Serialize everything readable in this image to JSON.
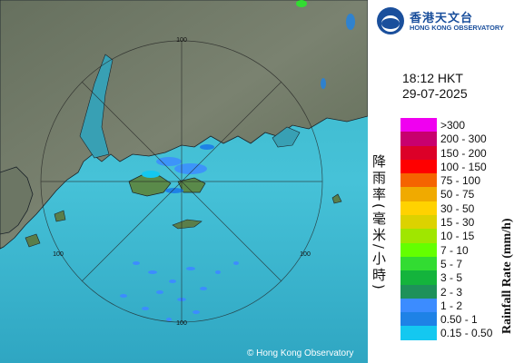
{
  "organization": {
    "name_zh": "香港天文台",
    "name_en": "HONG KONG OBSERVATORY"
  },
  "radar": {
    "time": "18:12 HKT",
    "date": "29-07-2025",
    "range_labels": [
      "100",
      "100",
      "100",
      "100"
    ],
    "copyright": "© Hong Kong Observatory"
  },
  "legend": {
    "title_zh": "降雨率(毫米/小時)",
    "title_en": "Rainfall Rate (mm/h)",
    "items": [
      {
        "label": ">300",
        "color": "#f000f0"
      },
      {
        "label": "200 - 300",
        "color": "#c8006e"
      },
      {
        "label": "150 - 200",
        "color": "#dc0028"
      },
      {
        "label": "100 - 150",
        "color": "#ff0000"
      },
      {
        "label": "75 - 100",
        "color": "#f56400"
      },
      {
        "label": "50 - 75",
        "color": "#f0aa00"
      },
      {
        "label": "30 - 50",
        "color": "#ffd200"
      },
      {
        "label": "15 - 30",
        "color": "#dcd200"
      },
      {
        "label": "10 - 15",
        "color": "#a0e600"
      },
      {
        "label": "7 - 10",
        "color": "#64ff00"
      },
      {
        "label": "5 - 7",
        "color": "#32dc32"
      },
      {
        "label": "3 - 5",
        "color": "#14b43c"
      },
      {
        "label": "2 - 3",
        "color": "#1e915a"
      },
      {
        "label": "1 - 2",
        "color": "#3c8cff"
      },
      {
        "label": "0.50 - 1",
        "color": "#1e82e6"
      },
      {
        "label": "0.15 - 0.50",
        "color": "#14c8f0"
      }
    ]
  }
}
